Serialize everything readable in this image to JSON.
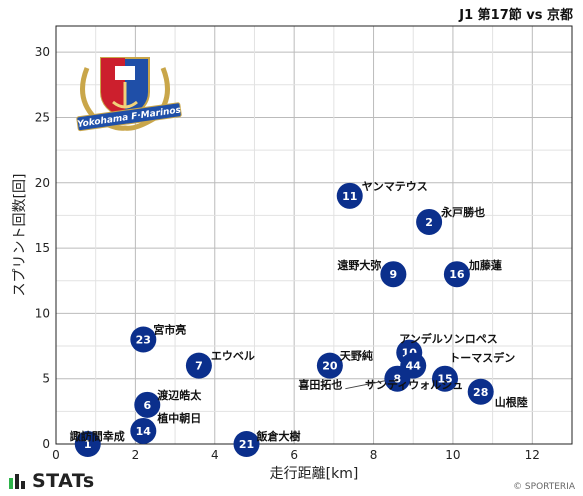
{
  "header": {
    "match": "J1 第17節 vs 京都"
  },
  "footer": {
    "brand": "STATs",
    "copyright": "© SPORTERIA"
  },
  "logo": {
    "text": "Yokohama F·Marinos"
  },
  "colors": {
    "marker": "#0b2f8c",
    "marker_text": "#ffffff",
    "grid": "#bbbbbb"
  },
  "chart_data": {
    "type": "scatter",
    "xlabel": "走行距離[km]",
    "ylabel": "スプリント回数[回]",
    "xlim": [
      0,
      13
    ],
    "ylim": [
      0,
      32
    ],
    "xticks": [
      0,
      2,
      4,
      6,
      8,
      10,
      12
    ],
    "yticks": [
      0,
      5,
      10,
      15,
      20,
      25,
      30
    ],
    "grid": true,
    "points": [
      {
        "number": "11",
        "name": "ヤンマテウス",
        "x": 7.4,
        "y": 19
      },
      {
        "number": "2",
        "name": "永戸勝也",
        "x": 9.4,
        "y": 17
      },
      {
        "number": "9",
        "name": "遠野大弥",
        "x": 8.5,
        "y": 13
      },
      {
        "number": "16",
        "name": "加藤蓮",
        "x": 10.1,
        "y": 13
      },
      {
        "number": "23",
        "name": "宮市亮",
        "x": 2.2,
        "y": 8
      },
      {
        "number": "7",
        "name": "エウベル",
        "x": 3.6,
        "y": 6
      },
      {
        "number": "20",
        "name": "天野純",
        "x": 6.9,
        "y": 6
      },
      {
        "number": "10",
        "name": "アンデルソンロペス",
        "x": 8.9,
        "y": 7
      },
      {
        "number": "44",
        "name": "トーマスデン",
        "x": 9.0,
        "y": 6
      },
      {
        "number": "8",
        "name": "喜田拓也",
        "x": 8.6,
        "y": 5
      },
      {
        "number": "15",
        "name": "サンディウォルシュ",
        "x": 9.8,
        "y": 5
      },
      {
        "number": "28",
        "name": "山根陸",
        "x": 10.7,
        "y": 4
      },
      {
        "number": "6",
        "name": "渡辺皓太",
        "x": 2.3,
        "y": 3
      },
      {
        "number": "14",
        "name": "植中朝日",
        "x": 2.2,
        "y": 1
      },
      {
        "number": "21",
        "name": "飯倉大樹",
        "x": 4.8,
        "y": 0
      },
      {
        "number": "1",
        "name": "諏訪間幸成",
        "x": 0.8,
        "y": 0
      }
    ]
  }
}
